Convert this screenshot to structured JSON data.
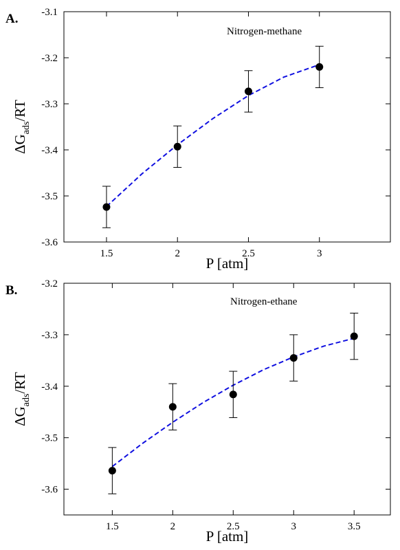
{
  "chart_data": [
    {
      "type": "scatter",
      "panel_label": "A.",
      "annotation": "Nitrogen-methane",
      "xlabel": "P [atm]",
      "ylabel_main": "ΔG",
      "ylabel_sub": "ads",
      "ylabel_tail": "/RT",
      "xlim": [
        1.2,
        3.5
      ],
      "ylim": [
        -3.6,
        -3.1
      ],
      "xticks": [
        1.5,
        2,
        2.5,
        3
      ],
      "xtick_labels": [
        "1.5",
        "2",
        "2.5",
        "3"
      ],
      "yticks": [
        -3.6,
        -3.5,
        -3.4,
        -3.3,
        -3.2,
        -3.1
      ],
      "ytick_labels": [
        "-3.6",
        "-3.5",
        "-3.4",
        "-3.3",
        "-3.2",
        "-3.1"
      ],
      "grid": false,
      "series": [
        {
          "x": [
            1.5,
            2,
            2.5,
            3
          ],
          "y": [
            -3.524,
            -3.393,
            -3.273,
            -3.22
          ],
          "error": [
            0.045,
            0.045,
            0.045,
            0.045
          ],
          "color": "#000000"
        }
      ],
      "fit": {
        "style": "dashed",
        "color": "#1010e0",
        "x": [
          1.5,
          1.75,
          2,
          2.25,
          2.5,
          2.75,
          3
        ],
        "y": [
          -3.523,
          -3.452,
          -3.389,
          -3.332,
          -3.282,
          -3.242,
          -3.215
        ]
      }
    },
    {
      "type": "scatter",
      "panel_label": "B.",
      "annotation": "Nitrogen-ethane",
      "xlabel": "P [atm]",
      "ylabel_main": "ΔG",
      "ylabel_sub": "ads",
      "ylabel_tail": "/RT",
      "xlim": [
        1.1,
        3.8
      ],
      "ylim": [
        -3.65,
        -3.2
      ],
      "xticks": [
        1.5,
        2,
        2.5,
        3,
        3.5
      ],
      "xtick_labels": [
        "1.5",
        "2",
        "2.5",
        "3",
        "3.5"
      ],
      "yticks": [
        -3.6,
        -3.5,
        -3.4,
        -3.3,
        -3.2
      ],
      "ytick_labels": [
        "-3.6",
        "-3.5",
        "-3.4",
        "-3.3",
        "-3.2"
      ],
      "grid": false,
      "series": [
        {
          "x": [
            1.5,
            2,
            2.5,
            3,
            3.5
          ],
          "y": [
            -3.564,
            -3.44,
            -3.416,
            -3.345,
            -3.303
          ],
          "error": [
            0.045,
            0.045,
            0.045,
            0.045,
            0.045
          ],
          "color": "#000000"
        }
      ],
      "fit": {
        "style": "dashed",
        "color": "#1010e0",
        "x": [
          1.5,
          1.75,
          2,
          2.25,
          2.5,
          2.75,
          3,
          3.25,
          3.5
        ],
        "y": [
          -3.556,
          -3.511,
          -3.47,
          -3.432,
          -3.398,
          -3.368,
          -3.343,
          -3.322,
          -3.307
        ]
      }
    }
  ]
}
